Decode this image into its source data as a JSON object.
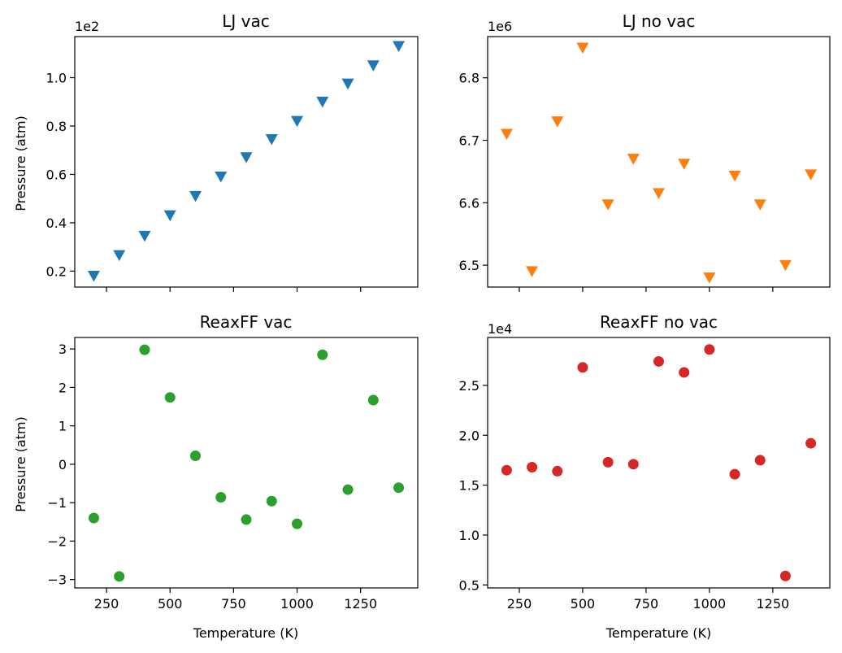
{
  "chart_data": [
    {
      "type": "scatter",
      "title": "LJ vac",
      "xlabel": "",
      "ylabel": "Pressure (atm)",
      "offset_label": "1e2",
      "marker": "triangle-down",
      "color": "#1f77b4",
      "x": [
        200,
        300,
        400,
        500,
        600,
        700,
        800,
        900,
        1000,
        1100,
        1200,
        1300,
        1400
      ],
      "y": [
        0.18,
        0.265,
        0.345,
        0.43,
        0.51,
        0.59,
        0.67,
        0.745,
        0.82,
        0.9,
        0.975,
        1.05,
        1.13
      ],
      "xlim": [
        125,
        1475
      ],
      "ylim": [
        0.134,
        1.17
      ],
      "xticks": [
        250,
        500,
        750,
        1000,
        1250
      ],
      "xtick_labels": [
        "",
        "",
        "",
        "",
        ""
      ],
      "yticks": [
        0.2,
        0.4,
        0.6,
        0.8,
        1.0
      ],
      "ytick_labels": [
        "0.2",
        "0.4",
        "0.6",
        "0.8",
        "1.0"
      ]
    },
    {
      "type": "scatter",
      "title": "LJ no vac",
      "xlabel": "",
      "ylabel": "",
      "offset_label": "1e6",
      "marker": "triangle-down",
      "color": "#ff7f0e",
      "x": [
        200,
        300,
        400,
        500,
        600,
        700,
        800,
        900,
        1000,
        1100,
        1200,
        1300,
        1400
      ],
      "y": [
        6.71,
        6.49,
        6.73,
        6.848,
        6.597,
        6.67,
        6.615,
        6.662,
        6.48,
        6.643,
        6.597,
        6.5,
        6.645
      ],
      "xlim": [
        125,
        1475
      ],
      "ylim": [
        6.465,
        6.866
      ],
      "xticks": [
        250,
        500,
        750,
        1000,
        1250
      ],
      "xtick_labels": [
        "",
        "",
        "",
        "",
        ""
      ],
      "yticks": [
        6.5,
        6.6,
        6.7,
        6.8
      ],
      "ytick_labels": [
        "6.5",
        "6.6",
        "6.7",
        "6.8"
      ]
    },
    {
      "type": "scatter",
      "title": "ReaxFF vac",
      "xlabel": "Temperature (K)",
      "ylabel": "Pressure (atm)",
      "offset_label": "",
      "marker": "circle",
      "color": "#2ca02c",
      "x": [
        200,
        300,
        400,
        500,
        600,
        700,
        800,
        900,
        1000,
        1100,
        1200,
        1300,
        1400
      ],
      "y": [
        -1.4,
        -2.92,
        2.98,
        1.74,
        0.22,
        -0.86,
        -1.44,
        -0.96,
        -1.55,
        2.85,
        -0.66,
        1.67,
        -0.61
      ],
      "xlim": [
        125,
        1475
      ],
      "ylim": [
        -3.22,
        3.3
      ],
      "xticks": [
        250,
        500,
        750,
        1000,
        1250
      ],
      "xtick_labels": [
        "250",
        "500",
        "750",
        "1000",
        "1250"
      ],
      "yticks": [
        -3,
        -2,
        -1,
        0,
        1,
        2,
        3
      ],
      "ytick_labels": [
        "−3",
        "−2",
        "−1",
        "0",
        "1",
        "2",
        "3"
      ]
    },
    {
      "type": "scatter",
      "title": "ReaxFF no vac",
      "xlabel": "Temperature (K)",
      "ylabel": "",
      "offset_label": "1e4",
      "marker": "circle",
      "color": "#d62728",
      "x": [
        200,
        300,
        400,
        500,
        600,
        700,
        800,
        900,
        1000,
        1100,
        1200,
        1300,
        1400
      ],
      "y": [
        1.65,
        1.68,
        1.64,
        2.68,
        1.73,
        1.71,
        2.74,
        2.63,
        2.86,
        1.61,
        1.75,
        0.59,
        1.92
      ],
      "xlim": [
        125,
        1475
      ],
      "ylim": [
        0.47,
        2.98
      ],
      "xticks": [
        250,
        500,
        750,
        1000,
        1250
      ],
      "xtick_labels": [
        "250",
        "500",
        "750",
        "1000",
        "1250"
      ],
      "yticks": [
        0.5,
        1.0,
        1.5,
        2.0,
        2.5
      ],
      "ytick_labels": [
        "0.5",
        "1.0",
        "1.5",
        "2.0",
        "2.5"
      ]
    }
  ]
}
